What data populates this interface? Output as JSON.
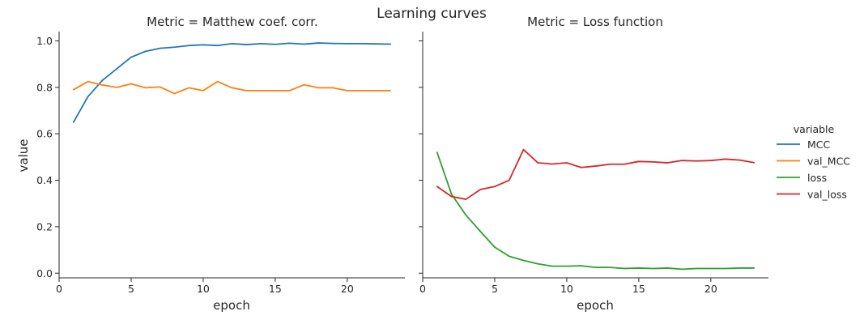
{
  "figure": {
    "title": "Learning curves",
    "ylabel": "value",
    "legend": {
      "title": "variable",
      "placement": "right"
    }
  },
  "chart_data": [
    {
      "type": "line",
      "title": "Metric = Matthew coef. corr.",
      "xlabel": "epoch",
      "ylabel": "value",
      "xlim": [
        0,
        24
      ],
      "ylim": [
        -0.02,
        1.04
      ],
      "xticks": [
        "0",
        "5",
        "10",
        "15",
        "20"
      ],
      "yticks": [
        "0.0",
        "0.2",
        "0.4",
        "0.6",
        "0.8",
        "1.0"
      ],
      "x": [
        1,
        2,
        3,
        4,
        5,
        6,
        7,
        8,
        9,
        10,
        11,
        12,
        13,
        14,
        15,
        16,
        17,
        18,
        19,
        20,
        21,
        22,
        23
      ],
      "series": [
        {
          "name": "MCC",
          "color": "#1f77b4",
          "values": [
            0.65,
            0.76,
            0.83,
            0.88,
            0.93,
            0.955,
            0.968,
            0.973,
            0.98,
            0.983,
            0.98,
            0.988,
            0.984,
            0.988,
            0.985,
            0.99,
            0.986,
            0.991,
            0.989,
            0.988,
            0.988,
            0.987,
            0.986
          ]
        },
        {
          "name": "val_MCC",
          "color": "#ff7f0e",
          "values": [
            0.79,
            0.825,
            0.81,
            0.8,
            0.815,
            0.798,
            0.802,
            0.773,
            0.798,
            0.786,
            0.825,
            0.798,
            0.786,
            0.786,
            0.786,
            0.786,
            0.811,
            0.798,
            0.798,
            0.786,
            0.786,
            0.786,
            0.786
          ]
        }
      ]
    },
    {
      "type": "line",
      "title": "Metric = Loss function",
      "xlabel": "epoch",
      "ylabel": "",
      "xlim": [
        0,
        24
      ],
      "ylim": [
        -0.02,
        1.04
      ],
      "xticks": [
        "0",
        "5",
        "10",
        "15",
        "20"
      ],
      "x": [
        1,
        2,
        3,
        4,
        5,
        6,
        7,
        8,
        9,
        10,
        11,
        12,
        13,
        14,
        15,
        16,
        17,
        18,
        19,
        20,
        21,
        22,
        23
      ],
      "series": [
        {
          "name": "loss",
          "color": "#2ca02c",
          "values": [
            0.52,
            0.34,
            0.25,
            0.18,
            0.112,
            0.073,
            0.055,
            0.04,
            0.03,
            0.03,
            0.032,
            0.025,
            0.025,
            0.02,
            0.022,
            0.02,
            0.022,
            0.017,
            0.02,
            0.02,
            0.02,
            0.022,
            0.022
          ]
        },
        {
          "name": "val_loss",
          "color": "#d62728",
          "values": [
            0.373,
            0.33,
            0.318,
            0.36,
            0.373,
            0.4,
            0.532,
            0.475,
            0.47,
            0.475,
            0.455,
            0.461,
            0.469,
            0.469,
            0.481,
            0.479,
            0.475,
            0.485,
            0.483,
            0.485,
            0.491,
            0.487,
            0.476
          ]
        }
      ]
    }
  ]
}
